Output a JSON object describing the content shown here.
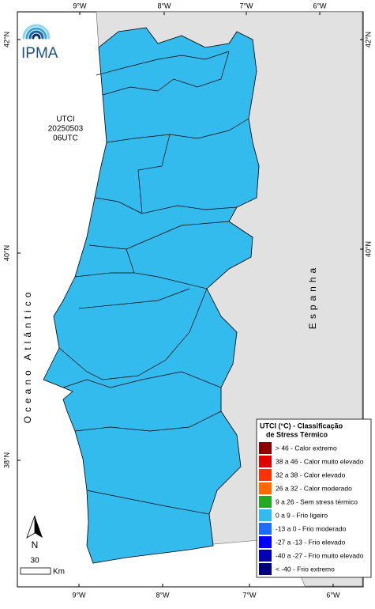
{
  "logo": {
    "text": "IPMA"
  },
  "map_info": {
    "lines": [
      "UTCI",
      "20250503",
      "06UTC"
    ]
  },
  "axes": {
    "top": [
      "9°W",
      "8°W",
      "7°W",
      "6°W"
    ],
    "bottom": [
      "9°W",
      "8°W",
      "7°W",
      "6°W"
    ],
    "left": [
      "42°N",
      "40°N",
      "38°N"
    ],
    "right": [
      "42°N",
      "40°N",
      "38°N"
    ]
  },
  "labels": {
    "ocean": "Oceano Atlântico",
    "country": "Espanha"
  },
  "legend": {
    "title": [
      "UTCI (°C) - Classificação",
      "de Stress Térmico"
    ],
    "items": [
      {
        "text": "> 46 - Calor extremo",
        "color": "#8b0000"
      },
      {
        "text": "38 a 46 - Calor muito elevado",
        "color": "#e00000"
      },
      {
        "text": "32 a 38 - Calor elevado",
        "color": "#ff3300"
      },
      {
        "text": "26 a 32 - Calor moderado",
        "color": "#ff6a00"
      },
      {
        "text": "9 a 26 - Sem stress térmico",
        "color": "#22aa22"
      },
      {
        "text": "0 a 9 - Frio ligeiro",
        "color": "#33bbee"
      },
      {
        "text": "-13 a 0 - Frio moderado",
        "color": "#1e6cff"
      },
      {
        "text": "-27 a -13 - Frio elevado",
        "color": "#0000ff"
      },
      {
        "text": "-40 a -27 - Frio muito elevado",
        "color": "#0000b8"
      },
      {
        "text": "< -40 - Frio extremo",
        "color": "#00007a"
      }
    ]
  },
  "scale": {
    "north": "N",
    "distance": "30",
    "unit": "Km"
  }
}
